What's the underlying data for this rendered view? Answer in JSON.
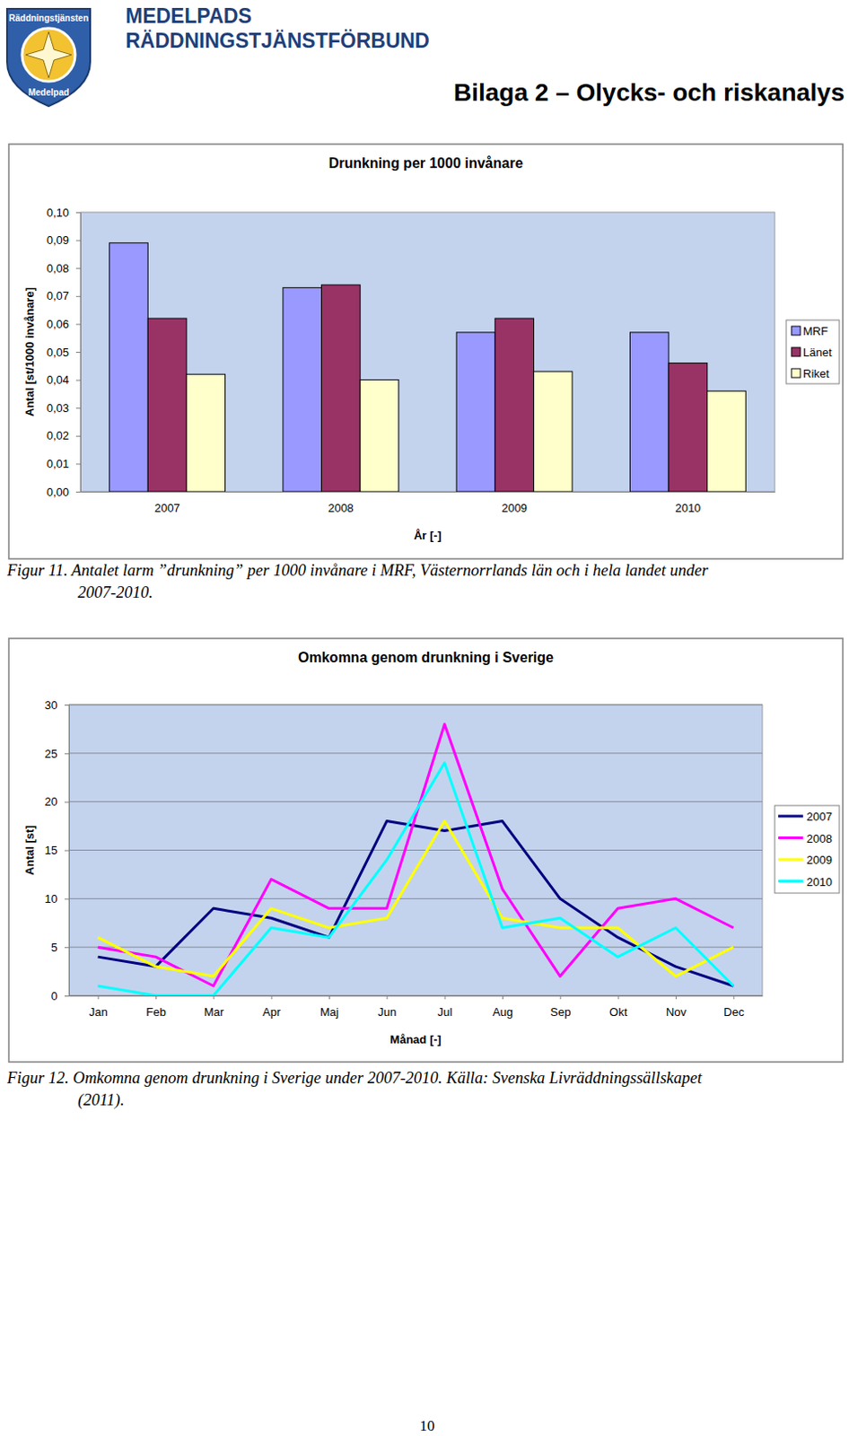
{
  "logo": {
    "top": "Räddningstjänsten",
    "bottom": "Medelpad"
  },
  "header": {
    "org_lines": [
      "MEDELPADS",
      "RÄDDNINGSTJÄNSTFÖRBUND"
    ],
    "title": "Bilaga 2 – Olycks- och riskanalys"
  },
  "captions": [
    [
      "Figur 11. Antalet larm ”drunkning” per 1000 invånare i MRF, Västernorrlands län och i hela landet under",
      "2007-2010."
    ],
    [
      "Figur 12. Omkomna genom drunkning i Sverige under 2007-2010. Källa: Svenska Livräddningssällskapet",
      "(2011)."
    ]
  ],
  "page_number": "10",
  "chart_data": [
    {
      "type": "bar",
      "title": "Drunkning per 1000 invånare",
      "x_label": "År [-]",
      "y_label": "Antal [st/1000 invånare]",
      "categories": [
        "2007",
        "2008",
        "2009",
        "2010"
      ],
      "series": [
        {
          "name": "MRF",
          "color": "#9999ff",
          "values": [
            0.089,
            0.073,
            0.057,
            0.057
          ]
        },
        {
          "name": "Länet",
          "color": "#993366",
          "values": [
            0.062,
            0.074,
            0.062,
            0.046
          ]
        },
        {
          "name": "Riket",
          "color": "#ffffcc",
          "values": [
            0.042,
            0.04,
            0.043,
            0.036
          ]
        }
      ],
      "ylim": [
        0,
        0.1
      ],
      "yticks": [
        {
          "value": 0,
          "label": "0,00"
        },
        {
          "value": 0.01,
          "label": "0,01"
        },
        {
          "value": 0.02,
          "label": "0,02"
        },
        {
          "value": 0.03,
          "label": "0,03"
        },
        {
          "value": 0.04,
          "label": "0,04"
        },
        {
          "value": 0.05,
          "label": "0,05"
        },
        {
          "value": 0.06,
          "label": "0,06"
        },
        {
          "value": 0.07,
          "label": "0,07"
        },
        {
          "value": 0.08,
          "label": "0,08"
        },
        {
          "value": 0.09,
          "label": "0,09"
        },
        {
          "value": 0.1,
          "label": "0,10"
        }
      ],
      "grid": false,
      "legend": "right"
    },
    {
      "type": "line",
      "title": "Omkomna genom drunkning i Sverige",
      "x_label": "Månad [-]",
      "y_label": "Antal [st]",
      "categories": [
        "Jan",
        "Feb",
        "Mar",
        "Apr",
        "Maj",
        "Jun",
        "Jul",
        "Aug",
        "Sep",
        "Okt",
        "Nov",
        "Dec"
      ],
      "series": [
        {
          "name": "2007",
          "color": "#000080",
          "values": [
            4,
            3,
            9,
            8,
            6,
            18,
            17,
            18,
            10,
            6,
            3,
            1
          ]
        },
        {
          "name": "2008",
          "color": "#ff00ff",
          "values": [
            5,
            4,
            1,
            12,
            9,
            9,
            28,
            11,
            2,
            9,
            10,
            7
          ]
        },
        {
          "name": "2009",
          "color": "#ffff00",
          "values": [
            6,
            3,
            2,
            9,
            7,
            8,
            18,
            8,
            7,
            7,
            2,
            5
          ]
        },
        {
          "name": "2010",
          "color": "#00ffff",
          "values": [
            1,
            0,
            0,
            7,
            6,
            14,
            24,
            7,
            8,
            4,
            7,
            1
          ]
        }
      ],
      "ylim": [
        0,
        30
      ],
      "yticks": [
        0,
        5,
        10,
        15,
        20,
        25,
        30
      ],
      "grid": true,
      "legend": "right"
    }
  ]
}
